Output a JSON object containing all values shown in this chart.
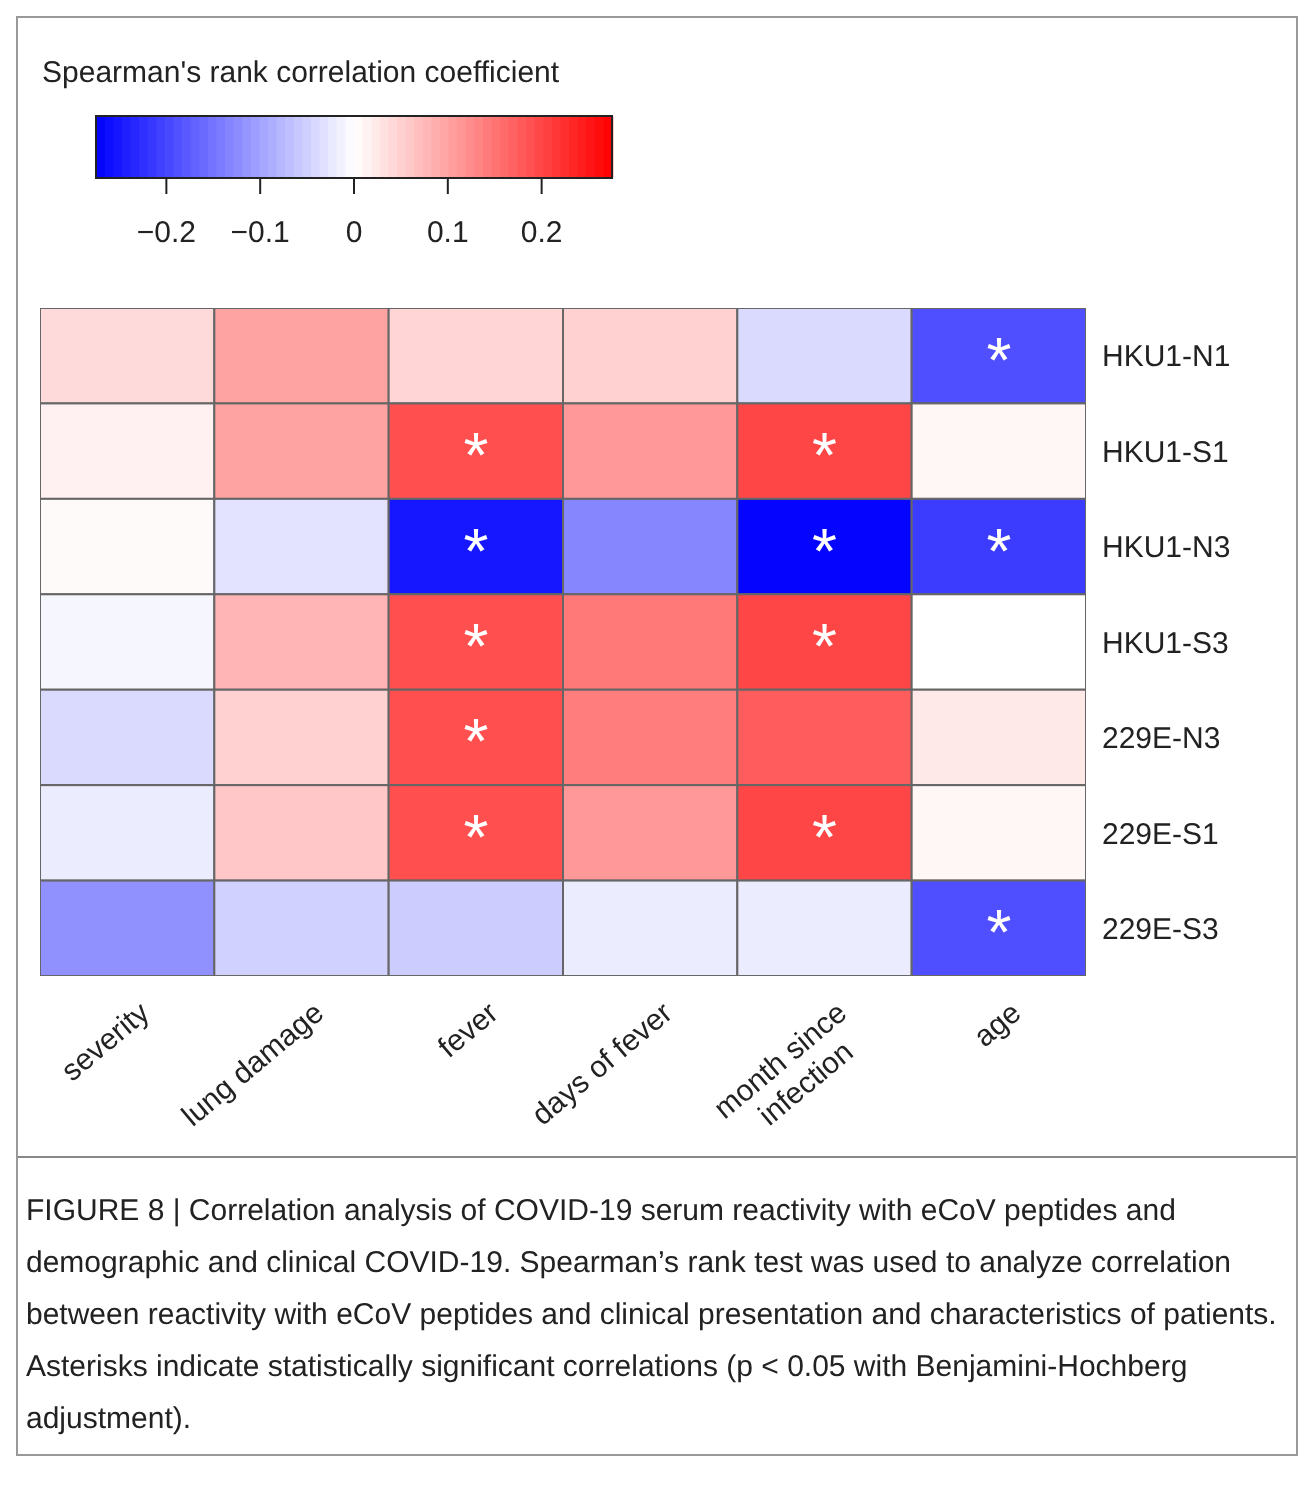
{
  "chart_data": {
    "type": "heatmap",
    "clabel": "Spearman's rank correlation coefficient",
    "categories": [
      "severity",
      "lung damage",
      "fever",
      "days of fever",
      "month since infection",
      "age"
    ],
    "y_categories": [
      "HKU1-N1",
      "HKU1-S1",
      "HKU1-N3",
      "HKU1-S3",
      "229E-N3",
      "229E-S1",
      "229E-S3"
    ],
    "cells": [
      [
        0.04,
        0.1,
        0.045,
        0.05,
        -0.04,
        -0.19
      ],
      [
        0.015,
        0.1,
        0.19,
        0.11,
        0.2,
        0.01
      ],
      [
        0.005,
        -0.03,
        -0.25,
        -0.13,
        -0.27,
        -0.21
      ],
      [
        -0.01,
        0.08,
        0.19,
        0.145,
        0.2,
        0
      ],
      [
        -0.04,
        0.05,
        0.19,
        0.14,
        0.175,
        0.025
      ],
      [
        -0.02,
        0.06,
        0.19,
        0.11,
        0.2,
        0.01
      ],
      [
        -0.12,
        -0.05,
        -0.055,
        -0.02,
        -0.02,
        -0.19
      ]
    ],
    "cell_labels": [
      [
        null,
        null,
        null,
        null,
        null,
        "*"
      ],
      [
        null,
        null,
        "*",
        null,
        "*",
        null
      ],
      [
        null,
        null,
        "*",
        null,
        "*",
        "*"
      ],
      [
        null,
        null,
        "*",
        null,
        "*",
        null
      ],
      [
        null,
        null,
        "*",
        null,
        null,
        null
      ],
      [
        null,
        null,
        "*",
        null,
        "*",
        null
      ],
      [
        null,
        null,
        null,
        null,
        null,
        "*"
      ]
    ],
    "clim": [
      -0.275,
      0.275
    ],
    "cticks": [
      {
        "value": -0.2,
        "label": "−0.2"
      },
      {
        "value": -0.1,
        "label": "−0.1"
      },
      0,
      0.1,
      0.2
    ],
    "annotations": [
      "FIGURE 8 | Correlation analysis of COVID-19 serum reactivity with eCoV peptides and demographic and clinical COVID-19. Spearman’s rank test was used to analyze correlation between reactivity with eCoV peptides and clinical presentation and characteristics of patients. Asterisks indicate statistically significant correlations (p < 0.05 with Benjamini-Hochberg adjustment)."
    ]
  }
}
